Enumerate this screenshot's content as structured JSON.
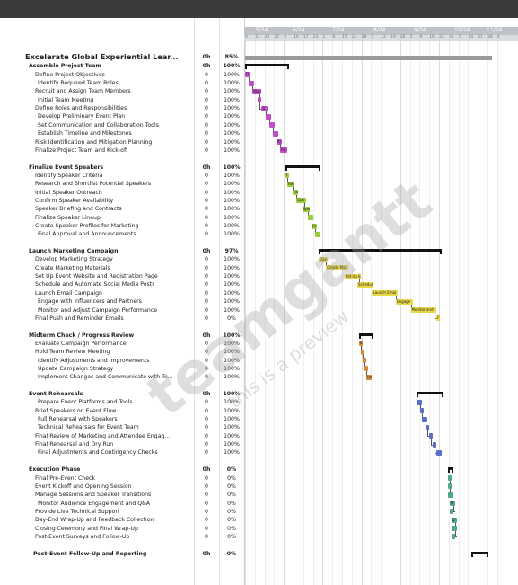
{
  "timeline": {
    "months": [
      "5/24",
      "6/24",
      "7/24",
      "8/24",
      "9/24",
      "10/24",
      "11/24"
    ],
    "days": [
      "6",
      "13",
      "20",
      "27",
      "3",
      "10",
      "17",
      "24",
      "1",
      "8",
      "15",
      "22",
      "29",
      "5",
      "12",
      "19",
      "26",
      "2",
      "9",
      "16",
      "23",
      "30",
      "7",
      "14",
      "21",
      "28",
      "4"
    ]
  },
  "colors": {
    "team": "#c24ec9",
    "speakers": "#9ccc3c",
    "marketing": "#e8d84a",
    "midterm": "#d58a3a",
    "rehearsals": "#5b6fc9",
    "execution": "#4fa88b"
  },
  "rows": [
    {
      "name": "Excelerate Global Experiential Lear...",
      "dur": "0h",
      "pct": "85%",
      "kind": "title"
    },
    {
      "name": "Assemble Project Team",
      "dur": "0h",
      "pct": "100%",
      "kind": "group"
    },
    {
      "name": "Define Project Objectives",
      "dur": "0",
      "pct": "100%",
      "kind": "task"
    },
    {
      "name": "Identify Required Team Roles",
      "dur": "0",
      "pct": "100%",
      "kind": "task2"
    },
    {
      "name": "Recruit and Assign Team Members",
      "dur": "0",
      "pct": "100%",
      "kind": "task"
    },
    {
      "name": "Initial Team Meeting",
      "dur": "0",
      "pct": "100%",
      "kind": "task2"
    },
    {
      "name": "Define Roles and Responsibilities",
      "dur": "0",
      "pct": "100%",
      "kind": "task"
    },
    {
      "name": "Develop Preliminary Event Plan",
      "dur": "0",
      "pct": "100%",
      "kind": "task2"
    },
    {
      "name": "Set Communication and Collaboration Tools",
      "dur": "0",
      "pct": "100%",
      "kind": "task2"
    },
    {
      "name": "Establish Timeline and Milestones",
      "dur": "0",
      "pct": "100%",
      "kind": "task2"
    },
    {
      "name": "Risk Identification and Mitigation Planning",
      "dur": "0",
      "pct": "100%",
      "kind": "task"
    },
    {
      "name": "Finalize Project Team and Kick-off",
      "dur": "0",
      "pct": "100%",
      "kind": "task"
    },
    {
      "name": "",
      "dur": "",
      "pct": "",
      "kind": "blank"
    },
    {
      "name": "Finalize Event Speakers",
      "dur": "0h",
      "pct": "100%",
      "kind": "group"
    },
    {
      "name": "Identify Speaker Criteria",
      "dur": "0",
      "pct": "100%",
      "kind": "task"
    },
    {
      "name": "Research and Shortlist Potential Speakers",
      "dur": "0",
      "pct": "100%",
      "kind": "task"
    },
    {
      "name": "Initial Speaker Outreach",
      "dur": "0",
      "pct": "100%",
      "kind": "task"
    },
    {
      "name": "Confirm Speaker Availability",
      "dur": "0",
      "pct": "100%",
      "kind": "task"
    },
    {
      "name": "Speaker Briefing and Contracts",
      "dur": "0",
      "pct": "100%",
      "kind": "task"
    },
    {
      "name": "Finalize Speaker Lineup",
      "dur": "0",
      "pct": "100%",
      "kind": "task"
    },
    {
      "name": "Create Speaker Profiles for Marketing",
      "dur": "0",
      "pct": "100%",
      "kind": "task"
    },
    {
      "name": "Final Approval and Announcements",
      "dur": "0",
      "pct": "100%",
      "kind": "task2"
    },
    {
      "name": "",
      "dur": "",
      "pct": "",
      "kind": "blank"
    },
    {
      "name": "Launch Marketing Campaign",
      "dur": "0h",
      "pct": "97%",
      "kind": "group"
    },
    {
      "name": "Develop Marketing Strategy",
      "dur": "0",
      "pct": "100%",
      "kind": "task"
    },
    {
      "name": "Create Marketing Materials",
      "dur": "0",
      "pct": "100%",
      "kind": "task"
    },
    {
      "name": "Set Up Event Website and Registration Page",
      "dur": "0",
      "pct": "100%",
      "kind": "task"
    },
    {
      "name": "Schedule and Automate Social Media Posts",
      "dur": "0",
      "pct": "100%",
      "kind": "task"
    },
    {
      "name": "Launch Email Campaign",
      "dur": "0",
      "pct": "100%",
      "kind": "task"
    },
    {
      "name": "Engage with Influencers and Partners",
      "dur": "0",
      "pct": "100%",
      "kind": "task2"
    },
    {
      "name": "Monitor and Adjust Campaign Performance",
      "dur": "0",
      "pct": "100%",
      "kind": "task2"
    },
    {
      "name": "Final Push and Reminder Emails",
      "dur": "0",
      "pct": "0%",
      "kind": "task"
    },
    {
      "name": "",
      "dur": "",
      "pct": "",
      "kind": "blank"
    },
    {
      "name": "Midterm Check / Progress Review",
      "dur": "0h",
      "pct": "100%",
      "kind": "group"
    },
    {
      "name": "Evaluate Campaign Performance",
      "dur": "0",
      "pct": "100%",
      "kind": "task"
    },
    {
      "name": "Hold Team Review Meeting",
      "dur": "0",
      "pct": "100%",
      "kind": "task"
    },
    {
      "name": "Identify Adjustments and Improvements",
      "dur": "0",
      "pct": "100%",
      "kind": "task2"
    },
    {
      "name": "Update Campaign Strategy",
      "dur": "0",
      "pct": "100%",
      "kind": "task2"
    },
    {
      "name": "Implement Changes and Communicate with Te...",
      "dur": "0",
      "pct": "100%",
      "kind": "task2"
    },
    {
      "name": "",
      "dur": "",
      "pct": "",
      "kind": "blank"
    },
    {
      "name": "Event Rehearsals",
      "dur": "0h",
      "pct": "100%",
      "kind": "group"
    },
    {
      "name": "Prepare Event Platforms and Tools",
      "dur": "0",
      "pct": "100%",
      "kind": "task3"
    },
    {
      "name": "Brief Speakers on Event Flow",
      "dur": "0",
      "pct": "100%",
      "kind": "task"
    },
    {
      "name": "Full Rehearsal with Speakers",
      "dur": "0",
      "pct": "100%",
      "kind": "task2"
    },
    {
      "name": "Technical Rehearsals for Event Team",
      "dur": "0",
      "pct": "100%",
      "kind": "task2"
    },
    {
      "name": "Final Review of Marketing and Attendee Engag...",
      "dur": "0",
      "pct": "100%",
      "kind": "task"
    },
    {
      "name": "Final Rehearsal and Dry Run",
      "dur": "0",
      "pct": "100%",
      "kind": "task"
    },
    {
      "name": "Final Adjustments and Contingency Checks",
      "dur": "0",
      "pct": "100%",
      "kind": "task2"
    },
    {
      "name": "",
      "dur": "",
      "pct": "",
      "kind": "blank"
    },
    {
      "name": "Execution Phase",
      "dur": "0h",
      "pct": "0%",
      "kind": "group"
    },
    {
      "name": "Final Pre-Event Check",
      "dur": "0",
      "pct": "0%",
      "kind": "task"
    },
    {
      "name": "Event Kickoff and Opening Session",
      "dur": "0",
      "pct": "0%",
      "kind": "task"
    },
    {
      "name": "Manage Sessions and Speaker Transitions",
      "dur": "0",
      "pct": "0%",
      "kind": "task"
    },
    {
      "name": "Monitor Audience Engagement and Q&A",
      "dur": "0",
      "pct": "0%",
      "kind": "task2"
    },
    {
      "name": "Provide Live Technical Support",
      "dur": "0",
      "pct": "0%",
      "kind": "task"
    },
    {
      "name": "Day-End Wrap-Up and Feedback Collection",
      "dur": "0",
      "pct": "0%",
      "kind": "task"
    },
    {
      "name": "Closing Ceremony and Final Wrap-Up",
      "dur": "0",
      "pct": "0%",
      "kind": "task"
    },
    {
      "name": "Post-Event Surveys and Follow-Up",
      "dur": "0",
      "pct": "0%",
      "kind": "task"
    },
    {
      "name": "",
      "dur": "",
      "pct": "",
      "kind": "blank"
    },
    {
      "name": "Post-Event Follow-Up and Reporting",
      "dur": "0h",
      "pct": "0%",
      "kind": "group2"
    }
  ],
  "bars": [
    {
      "row": 2,
      "start": 0,
      "len": 3,
      "label": "D",
      "color": "team"
    },
    {
      "row": 3,
      "start": 2,
      "len": 3,
      "label": "",
      "color": "team"
    },
    {
      "row": 4,
      "start": 4,
      "len": 5,
      "label": "Recr",
      "color": "team"
    },
    {
      "row": 5,
      "start": 7,
      "len": 2,
      "label": "",
      "color": "team"
    },
    {
      "row": 6,
      "start": 9,
      "len": 3,
      "label": "D",
      "color": "team"
    },
    {
      "row": 7,
      "start": 11,
      "len": 3,
      "label": "",
      "color": "team"
    },
    {
      "row": 8,
      "start": 13,
      "len": 3,
      "label": "",
      "color": "team"
    },
    {
      "row": 9,
      "start": 15,
      "len": 3,
      "label": "",
      "color": "team"
    },
    {
      "row": 10,
      "start": 17,
      "len": 3,
      "label": "Ri",
      "color": "team"
    },
    {
      "row": 11,
      "start": 19,
      "len": 4,
      "label": "Fin",
      "color": "team"
    },
    {
      "row": 14,
      "start": 22,
      "len": 2,
      "label": "I",
      "color": "speakers"
    },
    {
      "row": 15,
      "start": 23,
      "len": 4,
      "label": "Res",
      "color": "speakers"
    },
    {
      "row": 16,
      "start": 26,
      "len": 3,
      "label": "Ini",
      "color": "speakers"
    },
    {
      "row": 17,
      "start": 28,
      "len": 5,
      "label": "Con",
      "color": "speakers"
    },
    {
      "row": 18,
      "start": 31,
      "len": 4,
      "label": "Spe",
      "color": "speakers"
    },
    {
      "row": 19,
      "start": 34,
      "len": 3,
      "label": "",
      "color": "speakers"
    },
    {
      "row": 20,
      "start": 36,
      "len": 3,
      "label": "Cr",
      "color": "speakers"
    },
    {
      "row": 21,
      "start": 38,
      "len": 3,
      "label": "",
      "color": "speakers"
    },
    {
      "row": 24,
      "start": 40,
      "len": 5,
      "label": "Dev",
      "color": "marketing"
    },
    {
      "row": 25,
      "start": 44,
      "len": 12,
      "label": "Create Ma",
      "color": "marketing"
    },
    {
      "row": 26,
      "start": 54,
      "len": 9,
      "label": "Set Up E",
      "color": "marketing"
    },
    {
      "row": 27,
      "start": 61,
      "len": 9,
      "label": "Schedul",
      "color": "marketing"
    },
    {
      "row": 28,
      "start": 69,
      "len": 14,
      "label": "Launch Emai",
      "color": "marketing"
    },
    {
      "row": 29,
      "start": 82,
      "len": 9,
      "label": "Engage",
      "color": "marketing"
    },
    {
      "row": 30,
      "start": 90,
      "len": 14,
      "label": "Monitor and",
      "color": "marketing"
    },
    {
      "row": 31,
      "start": 104,
      "len": 2,
      "label": "F",
      "color": "marketing"
    },
    {
      "row": 34,
      "start": 62,
      "len": 2,
      "label": "E",
      "color": "midterm"
    },
    {
      "row": 35,
      "start": 63,
      "len": 2,
      "label": "",
      "color": "midterm"
    },
    {
      "row": 36,
      "start": 64,
      "len": 2,
      "label": "I",
      "color": "midterm"
    },
    {
      "row": 37,
      "start": 65,
      "len": 2,
      "label": "",
      "color": "midterm"
    },
    {
      "row": 38,
      "start": 66,
      "len": 3,
      "label": "Im",
      "color": "midterm"
    },
    {
      "row": 41,
      "start": 93,
      "len": 3,
      "label": "",
      "color": "rehearsals"
    },
    {
      "row": 42,
      "start": 95,
      "len": 2,
      "label": "",
      "color": "rehearsals"
    },
    {
      "row": 43,
      "start": 96,
      "len": 3,
      "label": "",
      "color": "rehearsals"
    },
    {
      "row": 44,
      "start": 98,
      "len": 2,
      "label": "",
      "color": "rehearsals"
    },
    {
      "row": 45,
      "start": 100,
      "len": 2,
      "label": "",
      "color": "rehearsals"
    },
    {
      "row": 46,
      "start": 102,
      "len": 2,
      "label": "",
      "color": "rehearsals"
    },
    {
      "row": 47,
      "start": 104,
      "len": 3,
      "label": "",
      "color": "rehearsals"
    },
    {
      "row": 50,
      "start": 110,
      "len": 1,
      "label": "",
      "color": "execution"
    },
    {
      "row": 51,
      "start": 110,
      "len": 2,
      "label": "",
      "color": "execution"
    },
    {
      "row": 52,
      "start": 110,
      "len": 3,
      "label": "",
      "color": "execution"
    },
    {
      "row": 53,
      "start": 111,
      "len": 3,
      "label": "M",
      "color": "execution"
    },
    {
      "row": 54,
      "start": 111,
      "len": 2,
      "label": "",
      "color": "execution"
    },
    {
      "row": 55,
      "start": 112,
      "len": 3,
      "label": "D",
      "color": "execution"
    },
    {
      "row": 56,
      "start": 112,
      "len": 3,
      "label": "",
      "color": "execution"
    },
    {
      "row": 57,
      "start": 112,
      "len": 2,
      "label": "",
      "color": "execution"
    }
  ],
  "summaries": [
    {
      "row": 0,
      "start": 0,
      "len": 134,
      "kind": "project"
    },
    {
      "row": 1,
      "start": 0,
      "len": 24,
      "kind": "group"
    },
    {
      "row": 13,
      "start": 22,
      "len": 19,
      "kind": "group"
    },
    {
      "row": 23,
      "start": 40,
      "len": 67,
      "kind": "group"
    },
    {
      "row": 33,
      "start": 62,
      "len": 8,
      "kind": "group"
    },
    {
      "row": 40,
      "start": 93,
      "len": 15,
      "kind": "group"
    },
    {
      "row": 49,
      "start": 110,
      "len": 3,
      "kind": "group"
    },
    {
      "row": 59,
      "start": 123,
      "len": 9,
      "kind": "group"
    }
  ],
  "watermark": {
    "brand": "teamgantt",
    "sub": "this is a preview"
  }
}
